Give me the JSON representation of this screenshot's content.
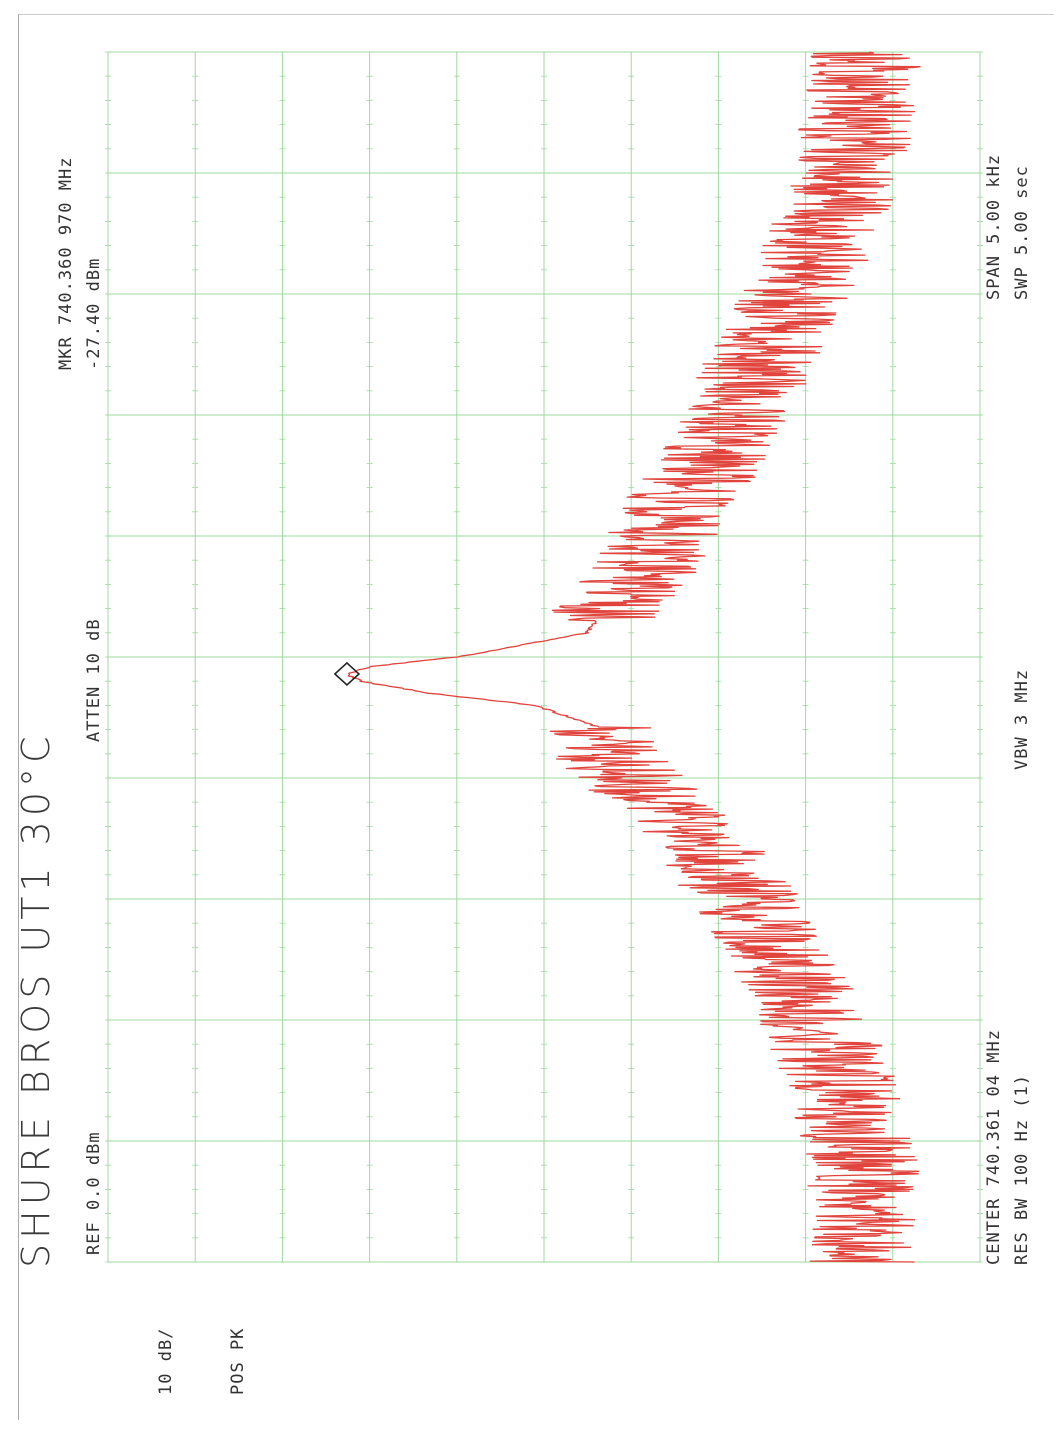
{
  "annotation": "SHURE BROS UT1 30°C",
  "scale": "10 dB/",
  "detector": "POS PK",
  "ref": "REF  0.0 dBm",
  "atten": "ATTEN 10 dB",
  "marker_freq": "MKR 740.360 970 MHz",
  "marker_level": "-27.40 dBm",
  "center": "CENTER 740.361 04 MHz",
  "res_bw": "RES BW 100   Hz (1)",
  "vbw": "VBW 3 MHz",
  "span": "SPAN 5.00 kHz",
  "sweep": "SWP 5.00  sec",
  "colors": {
    "grid": "#9ed89e",
    "trace": "#e0443c",
    "marker": "#222222",
    "text": "#333333"
  },
  "chart_data": {
    "type": "line",
    "title": "",
    "xlabel": "",
    "ylabel": "",
    "x_unit": "kHz offset from 740.361 04 MHz",
    "y_unit": "dBm",
    "xlim": [
      -2.5,
      2.5
    ],
    "ylim": [
      -100,
      0
    ],
    "grid": true,
    "orientation": "page rotated 90° counter-clockwise",
    "marker": {
      "x": -0.07,
      "y": -27.4
    },
    "series": [
      {
        "x": [
          -2.5,
          -2.25,
          -2.0,
          -1.75,
          -1.5,
          -1.25,
          -1.0,
          -0.75,
          -0.5,
          -0.4,
          -0.3,
          -0.2,
          -0.15,
          -0.1,
          -0.07,
          -0.04,
          0.0,
          0.1,
          0.2,
          0.3,
          0.45,
          0.6,
          0.75,
          1.0,
          1.25,
          1.5,
          1.75,
          2.0,
          2.25,
          2.5
        ],
        "y": [
          -86,
          -87,
          -86,
          -84,
          -81,
          -77,
          -73,
          -68,
          -60,
          -57,
          -57,
          -49,
          -37,
          -29,
          -27.4,
          -30,
          -40,
          -55,
          -57,
          -60,
          -63,
          -64,
          -68,
          -72,
          -75,
          -79,
          -82,
          -85,
          -86,
          -87
        ]
      }
    ]
  }
}
